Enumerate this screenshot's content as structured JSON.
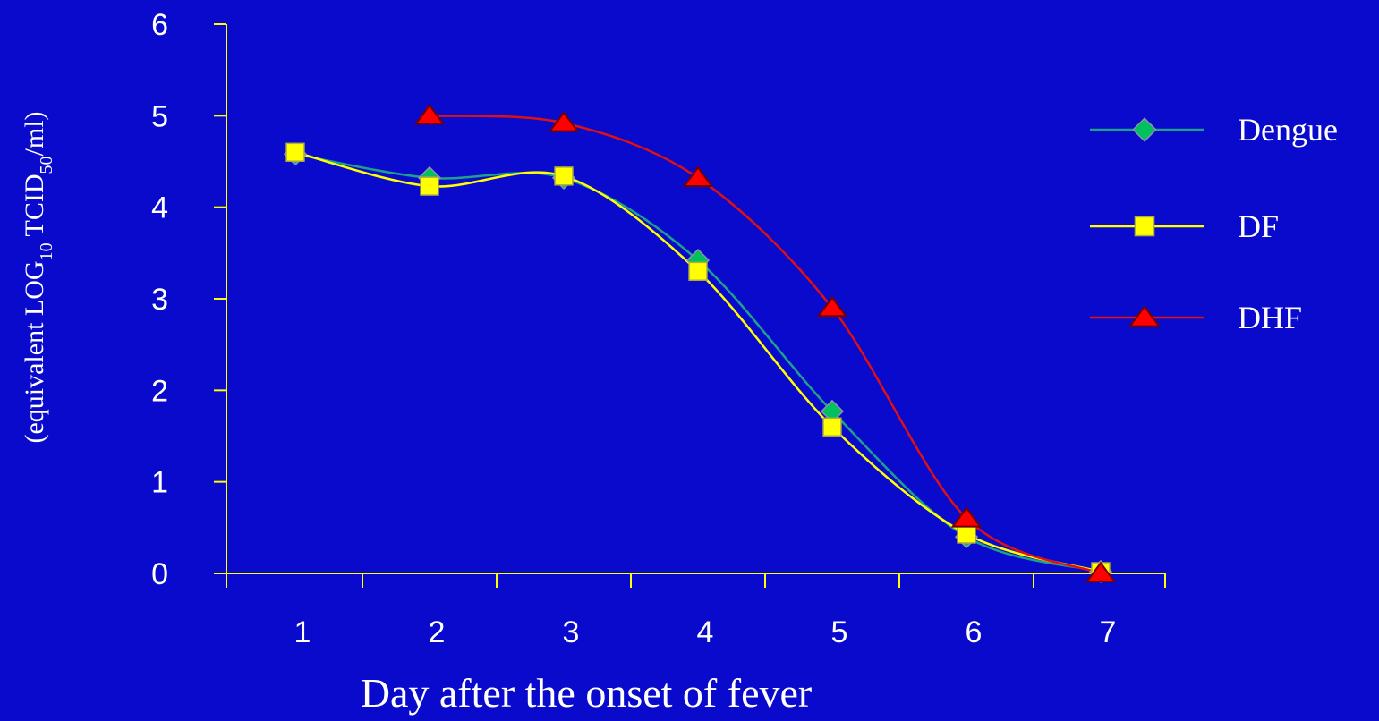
{
  "chart_data": {
    "type": "line",
    "title": "",
    "xlabel": "Day after the onset of fever",
    "ylabel": {
      "prefix": "(equivalent LOG",
      "sub1": "10",
      "middle": " TCID",
      "sub2": "50",
      "suffix": "/ml)"
    },
    "categories": [
      "1",
      "2",
      "3",
      "4",
      "5",
      "6",
      "7"
    ],
    "x": [
      1,
      2,
      3,
      4,
      5,
      6,
      7
    ],
    "ylim": [
      0,
      6
    ],
    "yticks": [
      "0",
      "1",
      "2",
      "3",
      "4",
      "5",
      "6"
    ],
    "grid": false,
    "legend_position": "right",
    "series": [
      {
        "name": "Dengue",
        "marker": "diamond",
        "line_color": "#1FA08A",
        "marker_color": "#00C060",
        "values": [
          4.58,
          4.32,
          4.32,
          3.42,
          1.77,
          0.4,
          0.02
        ]
      },
      {
        "name": "DF",
        "marker": "square",
        "line_color": "#FFFF00",
        "marker_color": "#FFFF00",
        "values": [
          4.6,
          4.23,
          4.34,
          3.3,
          1.6,
          0.43,
          0.02
        ]
      },
      {
        "name": "DHF",
        "marker": "triangle",
        "line_color": "#E01010",
        "marker_color": "#FF0000",
        "values": [
          null,
          5.0,
          4.92,
          4.32,
          2.9,
          0.6,
          0.0
        ]
      }
    ]
  },
  "colors": {
    "background": "#0A0ACC",
    "axis": "#FFFF00",
    "text": "#FFFFFF"
  }
}
